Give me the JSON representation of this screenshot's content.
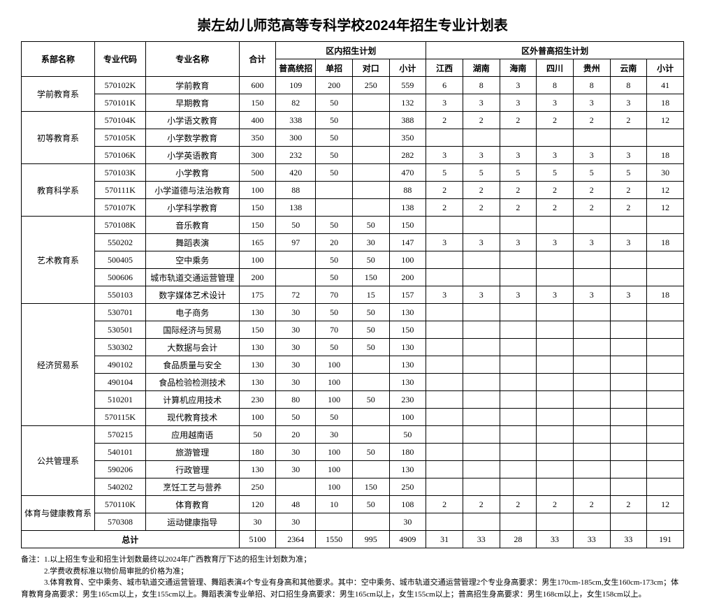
{
  "title": "崇左幼儿师范高等专科学校2024年招生专业计划表",
  "headers": {
    "dept": "系部名称",
    "code": "专业代码",
    "major": "专业名称",
    "total": "合计",
    "inner": "区内招生计划",
    "outer": "区外普高招生计划",
    "inner_cols": [
      "普高统招",
      "单招",
      "对口",
      "小计"
    ],
    "outer_cols": [
      "江西",
      "湖南",
      "海南",
      "四川",
      "贵州",
      "云南",
      "小计"
    ]
  },
  "departments": [
    {
      "name": "学前教育系",
      "rows": [
        {
          "code": "570102K",
          "major": "学前教育",
          "total": "600",
          "inner": [
            "109",
            "200",
            "250",
            "559"
          ],
          "outer": [
            "6",
            "8",
            "3",
            "8",
            "8",
            "8",
            "41"
          ]
        },
        {
          "code": "570101K",
          "major": "早期教育",
          "total": "150",
          "inner": [
            "82",
            "50",
            "",
            "132"
          ],
          "outer": [
            "3",
            "3",
            "3",
            "3",
            "3",
            "3",
            "18"
          ]
        }
      ]
    },
    {
      "name": "初等教育系",
      "rows": [
        {
          "code": "570104K",
          "major": "小学语文教育",
          "total": "400",
          "inner": [
            "338",
            "50",
            "",
            "388"
          ],
          "outer": [
            "2",
            "2",
            "2",
            "2",
            "2",
            "2",
            "12"
          ]
        },
        {
          "code": "570105K",
          "major": "小学数学教育",
          "total": "350",
          "inner": [
            "300",
            "50",
            "",
            "350"
          ],
          "outer": [
            "",
            "",
            "",
            "",
            "",
            "",
            ""
          ]
        },
        {
          "code": "570106K",
          "major": "小学英语教育",
          "total": "300",
          "inner": [
            "232",
            "50",
            "",
            "282"
          ],
          "outer": [
            "3",
            "3",
            "3",
            "3",
            "3",
            "3",
            "18"
          ]
        }
      ]
    },
    {
      "name": "教育科学系",
      "rows": [
        {
          "code": "570103K",
          "major": "小学教育",
          "total": "500",
          "inner": [
            "420",
            "50",
            "",
            "470"
          ],
          "outer": [
            "5",
            "5",
            "5",
            "5",
            "5",
            "5",
            "30"
          ]
        },
        {
          "code": "570111K",
          "major": "小学道德与法治教育",
          "total": "100",
          "inner": [
            "88",
            "",
            "",
            "88"
          ],
          "outer": [
            "2",
            "2",
            "2",
            "2",
            "2",
            "2",
            "12"
          ]
        },
        {
          "code": "570107K",
          "major": "小学科学教育",
          "total": "150",
          "inner": [
            "138",
            "",
            "",
            "138"
          ],
          "outer": [
            "2",
            "2",
            "2",
            "2",
            "2",
            "2",
            "12"
          ]
        }
      ]
    },
    {
      "name": "艺术教育系",
      "rows": [
        {
          "code": "570108K",
          "major": "音乐教育",
          "total": "150",
          "inner": [
            "50",
            "50",
            "50",
            "150"
          ],
          "outer": [
            "",
            "",
            "",
            "",
            "",
            "",
            ""
          ]
        },
        {
          "code": "550202",
          "major": "舞蹈表演",
          "total": "165",
          "inner": [
            "97",
            "20",
            "30",
            "147"
          ],
          "outer": [
            "3",
            "3",
            "3",
            "3",
            "3",
            "3",
            "18"
          ]
        },
        {
          "code": "500405",
          "major": "空中乘务",
          "total": "100",
          "inner": [
            "",
            "50",
            "50",
            "100"
          ],
          "outer": [
            "",
            "",
            "",
            "",
            "",
            "",
            ""
          ]
        },
        {
          "code": "500606",
          "major": "城市轨道交通运营管理",
          "total": "200",
          "inner": [
            "",
            "50",
            "150",
            "200"
          ],
          "outer": [
            "",
            "",
            "",
            "",
            "",
            "",
            ""
          ]
        },
        {
          "code": "550103",
          "major": "数字媒体艺术设计",
          "total": "175",
          "inner": [
            "72",
            "70",
            "15",
            "157"
          ],
          "outer": [
            "3",
            "3",
            "3",
            "3",
            "3",
            "3",
            "18"
          ]
        }
      ]
    },
    {
      "name": "经济贸易系",
      "rows": [
        {
          "code": "530701",
          "major": "电子商务",
          "total": "130",
          "inner": [
            "30",
            "50",
            "50",
            "130"
          ],
          "outer": [
            "",
            "",
            "",
            "",
            "",
            "",
            ""
          ]
        },
        {
          "code": "530501",
          "major": "国际经济与贸易",
          "total": "150",
          "inner": [
            "30",
            "70",
            "50",
            "150"
          ],
          "outer": [
            "",
            "",
            "",
            "",
            "",
            "",
            ""
          ]
        },
        {
          "code": "530302",
          "major": "大数据与会计",
          "total": "130",
          "inner": [
            "30",
            "50",
            "50",
            "130"
          ],
          "outer": [
            "",
            "",
            "",
            "",
            "",
            "",
            ""
          ]
        },
        {
          "code": "490102",
          "major": "食品质量与安全",
          "total": "130",
          "inner": [
            "30",
            "100",
            "",
            "130"
          ],
          "outer": [
            "",
            "",
            "",
            "",
            "",
            "",
            ""
          ]
        },
        {
          "code": "490104",
          "major": "食品检验检测技术",
          "total": "130",
          "inner": [
            "30",
            "100",
            "",
            "130"
          ],
          "outer": [
            "",
            "",
            "",
            "",
            "",
            "",
            ""
          ]
        },
        {
          "code": "510201",
          "major": "计算机应用技术",
          "total": "230",
          "inner": [
            "80",
            "100",
            "50",
            "230"
          ],
          "outer": [
            "",
            "",
            "",
            "",
            "",
            "",
            ""
          ]
        },
        {
          "code": "570115K",
          "major": "现代教育技术",
          "total": "100",
          "inner": [
            "50",
            "50",
            "",
            "100"
          ],
          "outer": [
            "",
            "",
            "",
            "",
            "",
            "",
            ""
          ]
        }
      ]
    },
    {
      "name": "公共管理系",
      "rows": [
        {
          "code": "570215",
          "major": "应用越南语",
          "total": "50",
          "inner": [
            "20",
            "30",
            "",
            "50"
          ],
          "outer": [
            "",
            "",
            "",
            "",
            "",
            "",
            ""
          ]
        },
        {
          "code": "540101",
          "major": "旅游管理",
          "total": "180",
          "inner": [
            "30",
            "100",
            "50",
            "180"
          ],
          "outer": [
            "",
            "",
            "",
            "",
            "",
            "",
            ""
          ]
        },
        {
          "code": "590206",
          "major": "行政管理",
          "total": "130",
          "inner": [
            "30",
            "100",
            "",
            "130"
          ],
          "outer": [
            "",
            "",
            "",
            "",
            "",
            "",
            ""
          ]
        },
        {
          "code": "540202",
          "major": "烹饪工艺与营养",
          "total": "250",
          "inner": [
            "",
            "100",
            "150",
            "250"
          ],
          "outer": [
            "",
            "",
            "",
            "",
            "",
            "",
            ""
          ]
        }
      ]
    },
    {
      "name": "体育与健康教育系",
      "rows": [
        {
          "code": "570110K",
          "major": "体育教育",
          "total": "120",
          "inner": [
            "48",
            "10",
            "50",
            "108"
          ],
          "outer": [
            "2",
            "2",
            "2",
            "2",
            "2",
            "2",
            "12"
          ]
        },
        {
          "code": "570308",
          "major": "运动健康指导",
          "total": "30",
          "inner": [
            "30",
            "",
            "",
            "30"
          ],
          "outer": [
            "",
            "",
            "",
            "",
            "",
            "",
            ""
          ]
        }
      ]
    }
  ],
  "total_row": {
    "label": "总计",
    "total": "5100",
    "inner": [
      "2364",
      "1550",
      "995",
      "4909"
    ],
    "outer": [
      "31",
      "33",
      "28",
      "33",
      "33",
      "33",
      "191"
    ]
  },
  "notes": [
    "备注：1.以上招生专业和招生计划数最终以2024年广西教育厅下达的招生计划数为准；",
    "　　　2.学费收费标准以物价局审批的价格为准；",
    "　　　3.体育教育、空中乘务、城市轨道交通运营管理、舞蹈表演4个专业有身高和其他要求。其中：空中乘务、城市轨道交通运营管理2个专业身高要求：男生170cm-185cm,女生160cm-173cm；体育教育身高要求：男生165cm以上，女生155cm以上。舞蹈表演专业单招、对口招生身高要求：男生165cm以上，女生155cm以上；普高招生身高要求：男生168cm以上，女生158cm以上。"
  ]
}
